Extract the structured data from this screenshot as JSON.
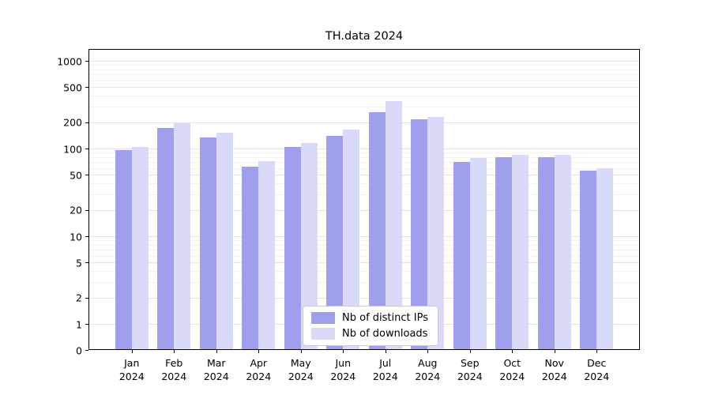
{
  "title": "TH.data 2024",
  "chart_data": {
    "type": "bar",
    "title": "TH.data 2024",
    "y_scale": "symlog",
    "ylim": [
      0,
      1000
    ],
    "y_ticks": [
      0,
      1,
      2,
      5,
      10,
      20,
      50,
      100,
      200,
      500,
      1000
    ],
    "grid": true,
    "legend_position": "lower center",
    "categories": [
      "Jan 2024",
      "Feb 2024",
      "Mar 2024",
      "Apr 2024",
      "May 2024",
      "Jun 2024",
      "Jul 2024",
      "Aug 2024",
      "Sep 2024",
      "Oct 2024",
      "Nov 2024",
      "Dec 2024"
    ],
    "series": [
      {
        "name": "Nb of distinct IPs",
        "color": "#9f9fee",
        "values": [
          95,
          170,
          135,
          62,
          105,
          140,
          260,
          215,
          70,
          80,
          80,
          56
        ]
      },
      {
        "name": "Nb of downloads",
        "color": "#d9d9f8",
        "values": [
          105,
          195,
          150,
          72,
          115,
          165,
          350,
          230,
          78,
          84,
          84,
          60
        ]
      }
    ]
  }
}
